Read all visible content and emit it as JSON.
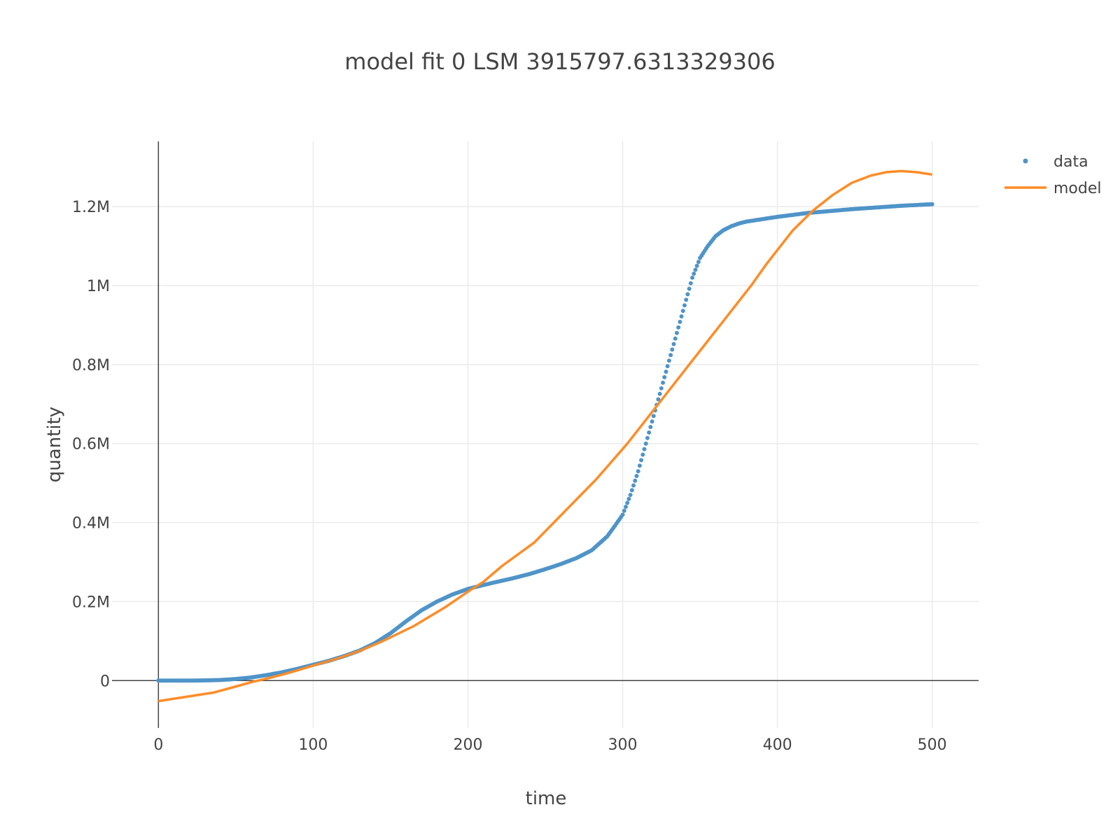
{
  "chart_data": {
    "type": "line",
    "title": "model fit 0   LSM 3915797.6313329306",
    "xlabel": "time",
    "ylabel": "quantity",
    "xlim": [
      -30,
      530
    ],
    "ylim": [
      -120000,
      1365000
    ],
    "x_ticks": [
      0,
      100,
      200,
      300,
      400,
      500
    ],
    "x_tick_labels": [
      "0",
      "100",
      "200",
      "300",
      "400",
      "500"
    ],
    "y_ticks": [
      0,
      200000,
      400000,
      600000,
      800000,
      1000000,
      1200000
    ],
    "y_tick_labels": [
      "0",
      "0.2M",
      "0.4M",
      "0.6M",
      "0.8M",
      "1M",
      "1.2M"
    ],
    "grid": true,
    "legend": "top-right",
    "series": [
      {
        "name": "data",
        "mode": "markers",
        "color": "#4f94c8",
        "x_range": [
          0,
          500
        ],
        "x_step": 1,
        "knots_x": [
          0,
          10,
          20,
          30,
          40,
          50,
          60,
          70,
          80,
          90,
          100,
          110,
          120,
          130,
          140,
          150,
          160,
          170,
          180,
          190,
          200,
          210,
          220,
          230,
          240,
          250,
          260,
          270,
          280,
          290,
          295,
          300,
          305,
          310,
          315,
          320,
          325,
          330,
          335,
          340,
          345,
          350,
          355,
          360,
          365,
          370,
          375,
          380,
          390,
          400,
          420,
          450,
          480,
          500
        ],
        "knots_y": [
          0,
          0,
          0,
          500,
          1500,
          4000,
          8000,
          14000,
          21000,
          30000,
          40000,
          50000,
          62000,
          76000,
          95000,
          120000,
          150000,
          178000,
          200000,
          218000,
          232000,
          242000,
          251000,
          260000,
          270000,
          282000,
          295000,
          310000,
          330000,
          365000,
          392000,
          420000,
          470000,
          530000,
          600000,
          670000,
          740000,
          810000,
          880000,
          950000,
          1020000,
          1070000,
          1100000,
          1125000,
          1140000,
          1150000,
          1157000,
          1162000,
          1168000,
          1174000,
          1184000,
          1194000,
          1202000,
          1206000
        ]
      },
      {
        "name": "model",
        "mode": "lines",
        "color": "#ff8c26",
        "x": [
          0,
          36,
          50,
          60,
          70,
          80,
          90,
          100,
          115,
          130,
          145,
          165,
          185,
          200,
          210,
          222,
          243,
          263,
          283,
          303,
          323,
          343,
          363,
          383,
          393,
          410,
          423,
          436,
          448,
          460,
          470,
          480,
          490,
          500
        ],
        "y": [
          -52000,
          -30000,
          -15000,
          -4000,
          5000,
          15000,
          26000,
          38000,
          55000,
          75000,
          100000,
          138000,
          185000,
          225000,
          250000,
          290000,
          350000,
          430000,
          510000,
          600000,
          700000,
          800000,
          900000,
          1000000,
          1055000,
          1140000,
          1190000,
          1230000,
          1260000,
          1278000,
          1287000,
          1290000,
          1287000,
          1281000
        ]
      }
    ]
  }
}
